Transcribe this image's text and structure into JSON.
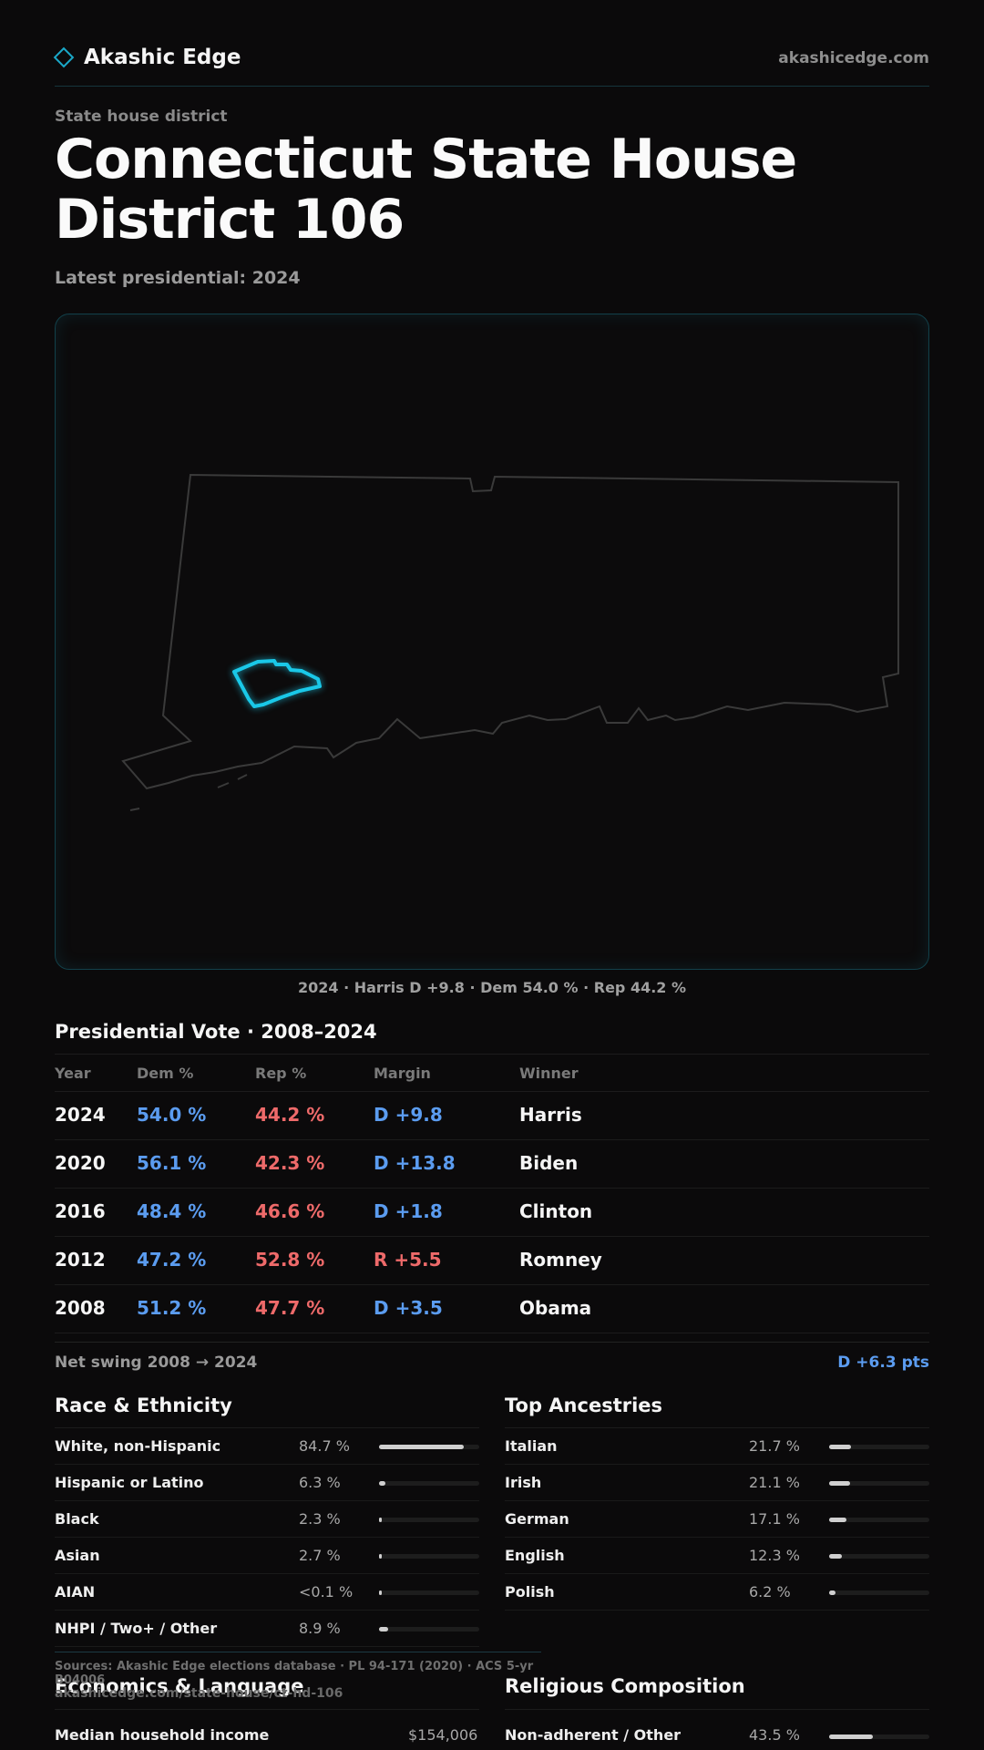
{
  "header": {
    "brand": "Akashic Edge",
    "site": "akashicedge.com"
  },
  "page": {
    "kicker": "State house district",
    "title": "Connecticut State House District 106",
    "subtitle": "Latest presidential: 2024",
    "map_caption": "2024 · Harris D +9.8 · Dem 54.0 % · Rep 44.2 %"
  },
  "votes": {
    "title": "Presidential Vote · 2008–2024",
    "headers": {
      "year": "Year",
      "dem": "Dem %",
      "rep": "Rep %",
      "margin": "Margin",
      "winner": "Winner"
    },
    "rows": [
      {
        "year": "2024",
        "dem": "54.0 %",
        "rep": "44.2 %",
        "margin": "D +9.8",
        "margin_party": "D",
        "winner": "Harris"
      },
      {
        "year": "2020",
        "dem": "56.1 %",
        "rep": "42.3 %",
        "margin": "D +13.8",
        "margin_party": "D",
        "winner": "Biden"
      },
      {
        "year": "2016",
        "dem": "48.4 %",
        "rep": "46.6 %",
        "margin": "D +1.8",
        "margin_party": "D",
        "winner": "Clinton"
      },
      {
        "year": "2012",
        "dem": "47.2 %",
        "rep": "52.8 %",
        "margin": "R +5.5",
        "margin_party": "R",
        "winner": "Romney"
      },
      {
        "year": "2008",
        "dem": "51.2 %",
        "rep": "47.7 %",
        "margin": "D +3.5",
        "margin_party": "D",
        "winner": "Obama"
      }
    ],
    "swing_label": "Net swing 2008 → 2024",
    "swing_value": "D +6.3 pts"
  },
  "race": {
    "title": "Race & Ethnicity",
    "rows": [
      {
        "label": "White, non-Hispanic",
        "value": "84.7 %",
        "share": 84.7
      },
      {
        "label": "Hispanic or Latino",
        "value": "6.3 %",
        "share": 6.3
      },
      {
        "label": "Black",
        "value": "2.3 %",
        "share": 2.3
      },
      {
        "label": "Asian",
        "value": "2.7 %",
        "share": 2.7
      },
      {
        "label": "AIAN",
        "value": "<0.1 %",
        "share": 0.05
      },
      {
        "label": "NHPI / Two+ / Other",
        "value": "8.9 %",
        "share": 8.9
      }
    ]
  },
  "ancestry": {
    "title": "Top Ancestries",
    "rows": [
      {
        "label": "Italian",
        "value": "21.7 %",
        "share": 21.7
      },
      {
        "label": "Irish",
        "value": "21.1 %",
        "share": 21.1
      },
      {
        "label": "German",
        "value": "17.1 %",
        "share": 17.1
      },
      {
        "label": "English",
        "value": "12.3 %",
        "share": 12.3
      },
      {
        "label": "Polish",
        "value": "6.2 %",
        "share": 6.2
      }
    ]
  },
  "footer": {
    "sources": "Sources: Akashic Edge elections database · PL 94-171 (2020) · ACS 5-yr B04006",
    "url": "akashicedge.com/state-house/ct-hd-106"
  },
  "economics": {
    "title": "Economics & Language",
    "first_label": "Median household income",
    "first_value": "$154,006"
  },
  "religion": {
    "title": "Religious Composition",
    "first_label": "Non-adherent / Other",
    "first_value": "43.5 %",
    "first_share": 43.5
  },
  "colors": {
    "dem": "#5b9cf0",
    "rep": "#ee6a6a",
    "accent": "#1ac8e8"
  }
}
